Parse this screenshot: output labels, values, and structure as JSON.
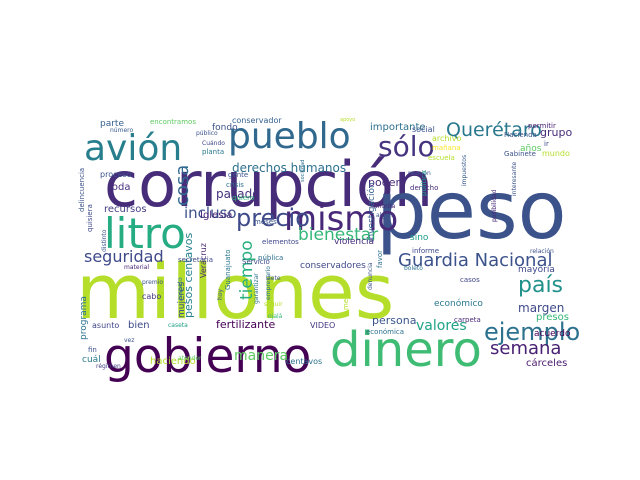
{
  "words": [
    {
      "text": "corrupción",
      "color": "#472c7a"
    },
    {
      "text": "millones",
      "color": "#b5de2b"
    },
    {
      "text": "peso",
      "color": "#3b528b"
    },
    {
      "text": "gobierno",
      "color": "#440154"
    },
    {
      "text": "dinero",
      "color": "#3fbc73"
    },
    {
      "text": "litro",
      "color": "#25ac82"
    },
    {
      "text": "avión",
      "color": "#277f8e"
    },
    {
      "text": "pueblo",
      "color": "#31688e"
    },
    {
      "text": "mismo",
      "color": "#482878"
    },
    {
      "text": "precio",
      "color": "#3e4a89"
    },
    {
      "text": "sólo",
      "color": "#463480"
    },
    {
      "text": "ejemplo",
      "color": "#2c728e"
    },
    {
      "text": "Querétaro",
      "color": "#2a788e"
    },
    {
      "text": "Guardia Nacional",
      "color": "#3b528b"
    },
    {
      "text": "país",
      "color": "#21918c"
    },
    {
      "text": "semana",
      "color": "#482173"
    },
    {
      "text": "seguridad",
      "color": "#3e4989"
    },
    {
      "text": "bienestar",
      "color": "#35b779"
    },
    {
      "text": "tiempo",
      "color": "#2ab07f"
    },
    {
      "text": "derechos humanos",
      "color": "#2d708e"
    },
    {
      "text": "cosa",
      "color": "#31688e"
    },
    {
      "text": "incluso",
      "color": "#3b528b"
    },
    {
      "text": "valores",
      "color": "#20a386"
    },
    {
      "text": "manera",
      "color": "#5ec962"
    },
    {
      "text": "margen",
      "color": "#3e4989"
    },
    {
      "text": "grupo",
      "color": "#472d7b"
    },
    {
      "text": "importante",
      "color": "#2d708e"
    },
    {
      "text": "pasado",
      "color": "#46327e"
    },
    {
      "text": "fondo",
      "color": "#3b528b"
    },
    {
      "text": "Iglesia",
      "color": "#482576"
    },
    {
      "text": "persona",
      "color": "#39568c"
    },
    {
      "text": "poder",
      "color": "#482979"
    },
    {
      "text": "investigación",
      "color": "#355f8d"
    },
    {
      "text": "fertilizante",
      "color": "#440154"
    },
    {
      "text": "bien",
      "color": "#3e4a89"
    },
    {
      "text": "recursos",
      "color": "#433e85"
    },
    {
      "text": "toda",
      "color": "#472f7d"
    },
    {
      "text": "parte",
      "color": "#355f8d"
    },
    {
      "text": "mujeres",
      "color": "#3b528b"
    },
    {
      "text": "pesos centavos",
      "color": "#26828e"
    },
    {
      "text": "Veracruz",
      "color": "#482475"
    },
    {
      "text": "económico",
      "color": "#2a788e"
    },
    {
      "text": "mayoría",
      "color": "#3e4989"
    },
    {
      "text": "presos",
      "color": "#35b779"
    },
    {
      "text": "acuerdo",
      "color": "#440154"
    },
    {
      "text": "cárceles",
      "color": "#481a6c"
    },
    {
      "text": "programa",
      "color": "#2c728e"
    },
    {
      "text": "haciendo",
      "color": "#b5de2b"
    },
    {
      "text": "cuál",
      "color": "#2a788e"
    },
    {
      "text": "centavos",
      "color": "#2c728e"
    },
    {
      "text": "conservadores",
      "color": "#3e4989"
    },
    {
      "text": "violencia",
      "color": "#472d7b"
    },
    {
      "text": "sino",
      "color": "#1f9e89"
    },
    {
      "text": "proceso",
      "color": "#3b528b"
    },
    {
      "text": "pública",
      "color": "#2d708e"
    },
    {
      "text": "elementos",
      "color": "#3f4889"
    },
    {
      "text": "cabo",
      "color": "#443983"
    },
    {
      "text": "asunto",
      "color": "#404688"
    },
    {
      "text": "VIDEO",
      "color": "#453781"
    },
    {
      "text": "económica",
      "color": "#2c728e"
    },
    {
      "text": "conservador",
      "color": "#355f8d"
    },
    {
      "text": "social",
      "color": "#3b528b"
    },
    {
      "text": "mañana",
      "color": "#fde725"
    },
    {
      "text": "años",
      "color": "#5ec962"
    },
    {
      "text": "mundo",
      "color": "#b5de2b"
    },
    {
      "text": "Hacienda",
      "color": "#39568c"
    },
    {
      "text": "permitir",
      "color": "#482475"
    },
    {
      "text": "Gabinete",
      "color": "#3b528b"
    },
    {
      "text": "archivo",
      "color": "#b5de2b"
    },
    {
      "text": "encontramos",
      "color": "#5ec962"
    },
    {
      "text": "número",
      "color": "#38598c"
    },
    {
      "text": "público",
      "color": "#3b528b"
    },
    {
      "text": "Cuándo",
      "color": "#404688"
    },
    {
      "text": "planta",
      "color": "#2a788e"
    },
    {
      "text": "gente",
      "color": "#3b528b"
    },
    {
      "text": "crisis",
      "color": "#2d708e"
    },
    {
      "text": "quiero",
      "color": "#35b779"
    },
    {
      "text": "Servicio",
      "color": "#3e4989"
    },
    {
      "text": "empresario",
      "color": "#2c728e"
    },
    {
      "text": "reunión",
      "color": "#3b528b"
    },
    {
      "text": "ahorita",
      "color": "#482475"
    },
    {
      "text": "algún",
      "color": "#3b528b"
    },
    {
      "text": "derecho",
      "color": "#472d7b"
    },
    {
      "text": "política",
      "color": "#1f9e89"
    },
    {
      "text": "impuestos",
      "color": "#38598c"
    },
    {
      "text": "posibilidad",
      "color": "#482979"
    },
    {
      "text": "interesante",
      "color": "#3b528b"
    },
    {
      "text": "informe",
      "color": "#3e4989"
    },
    {
      "text": "boleto",
      "color": "#2c728e"
    },
    {
      "text": "favor",
      "color": "#2d708e"
    },
    {
      "text": "relación",
      "color": "#3b528b"
    },
    {
      "text": "carpeta",
      "color": "#482979"
    },
    {
      "text": "casos",
      "color": "#404688"
    },
    {
      "text": "delincuencia",
      "color": "#3b528b"
    },
    {
      "text": "quisiera",
      "color": "#3e4989"
    },
    {
      "text": "distinto",
      "color": "#3b528b"
    },
    {
      "text": "régimen",
      "color": "#433e85"
    },
    {
      "text": "material",
      "color": "#482475"
    },
    {
      "text": "premio",
      "color": "#3b528b"
    },
    {
      "text": "Guanajuato",
      "color": "#2a788e"
    },
    {
      "text": "hoy",
      "color": "#3b528b"
    },
    {
      "text": "garantizar",
      "color": "#2c728e"
    },
    {
      "text": "ojalá",
      "color": "#35b779"
    },
    {
      "text": "seguir",
      "color": "#b5de2b"
    },
    {
      "text": "siete",
      "color": "#3b528b"
    },
    {
      "text": "atender",
      "color": "#5ec962"
    },
    {
      "text": "caseta",
      "color": "#1f9e89"
    },
    {
      "text": "secretaria",
      "color": "#3e4989"
    },
    {
      "text": "vez",
      "color": "#3b528b"
    },
    {
      "text": "sociedad",
      "color": "#2d708e"
    },
    {
      "text": "mejor",
      "color": "#b5de2b"
    },
    {
      "text": "denuncia",
      "color": "#3b528b"
    },
    {
      "text": "apoyo",
      "color": "#b5de2b"
    },
    {
      "text": "meses",
      "color": "#3b528b"
    },
    {
      "text": "respeto",
      "color": "#2c728e"
    },
    {
      "text": "fin",
      "color": "#3b528b"
    },
    {
      "text": "ir",
      "color": "#3e4989"
    },
    {
      "text": "escuela",
      "color": "#b5de2b"
    }
  ]
}
